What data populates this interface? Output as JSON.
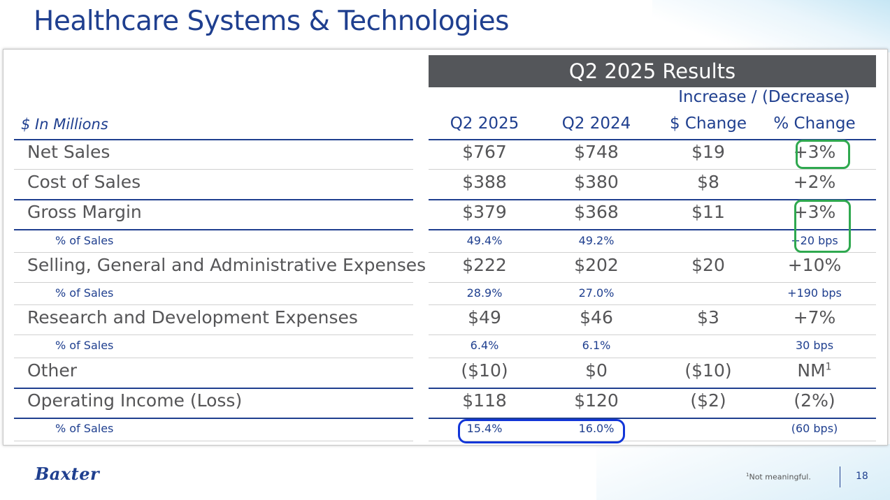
{
  "title": "Healthcare Systems & Technologies",
  "results_header": "Q2 2025 Results",
  "increase_decrease_label": "Increase / (Decrease)",
  "units_label": "$ In Millions",
  "columns": [
    "Q2 2025",
    "Q2 2024",
    "$ Change",
    "% Change"
  ],
  "rows": [
    {
      "label": "Net Sales",
      "q2_2025": "$767",
      "q2_2024": "$748",
      "chg": "$19",
      "pct": "+3%"
    },
    {
      "label": "Cost of Sales",
      "q2_2025": "$388",
      "q2_2024": "$380",
      "chg": "$8",
      "pct": "+2%"
    },
    {
      "label": "Gross Margin",
      "q2_2025": "$379",
      "q2_2024": "$368",
      "chg": "$11",
      "pct": "+3%"
    },
    {
      "label": "% of Sales",
      "q2_2025": "49.4%",
      "q2_2024": "49.2%",
      "chg": "",
      "pct": "+20 bps"
    },
    {
      "label": "Selling, General and Administrative Expenses",
      "q2_2025": "$222",
      "q2_2024": "$202",
      "chg": "$20",
      "pct": "+10%"
    },
    {
      "label": "% of Sales",
      "q2_2025": "28.9%",
      "q2_2024": "27.0%",
      "chg": "",
      "pct": "+190 bps"
    },
    {
      "label": "Research and Development Expenses",
      "q2_2025": "$49",
      "q2_2024": "$46",
      "chg": "$3",
      "pct": "+7%"
    },
    {
      "label": "% of Sales",
      "q2_2025": "6.4%",
      "q2_2024": "6.1%",
      "chg": "",
      "pct": "30 bps"
    },
    {
      "label": "Other",
      "q2_2025": "($10)",
      "q2_2024": "$0",
      "chg": "($10)",
      "pct": "NM",
      "pct_sup": "1"
    },
    {
      "label": "Operating Income (Loss)",
      "q2_2025": "$118",
      "q2_2024": "$120",
      "chg": "($2)",
      "pct": "(2%)"
    },
    {
      "label": "% of Sales",
      "q2_2025": "15.4%",
      "q2_2024": "16.0%",
      "chg": "",
      "pct": "(60 bps)"
    }
  ],
  "logo_text": "Baxter",
  "footnote_sup": "1",
  "footnote": "Not meaningful.",
  "page_number": "18",
  "colors": {
    "navy": "#1f3f8f",
    "header_gray": "#54565a",
    "highlight_green": "#2fa84f",
    "highlight_blue": "#1236d8"
  }
}
